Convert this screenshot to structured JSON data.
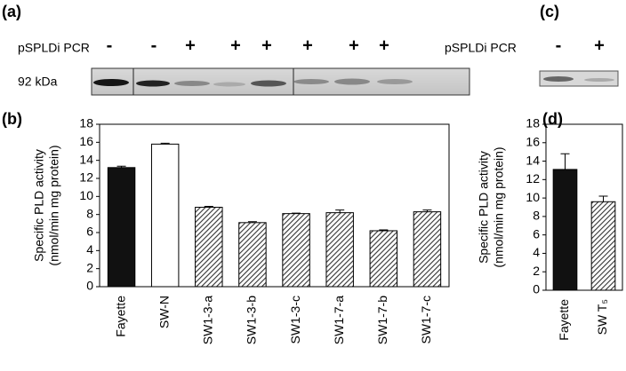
{
  "blots": [
    {
      "label": "(a)",
      "row_label": "pSPLDi PCR",
      "signs": [
        "-",
        "-",
        "+",
        "+",
        "+",
        "+",
        "+",
        "+"
      ],
      "band_label": "92 kDa"
    },
    {
      "label": "(c)",
      "row_label": "pSPLDi PCR",
      "signs": [
        "-",
        "+"
      ]
    }
  ],
  "chart_data": [
    {
      "type": "bar",
      "label": "(b)",
      "y_label": [
        "Specific PLD activity",
        "(nmol/min mg protein)"
      ],
      "categories": [
        "Fayette",
        "SW-N",
        "SW1-3-a",
        "SW1-3-b",
        "SW1-3-c",
        "SW1-7-a",
        "SW1-7-b",
        "SW1-7-c"
      ],
      "values": [
        13.2,
        15.8,
        8.8,
        7.1,
        8.1,
        8.2,
        6.2,
        8.3
      ],
      "errors": [
        0.15,
        0.1,
        0.1,
        0.1,
        0.05,
        0.3,
        0.1,
        0.2
      ],
      "colors": [
        "#111111",
        "#ffffff",
        "#888888",
        "#888888",
        "#888888",
        "#888888",
        "#888888",
        "#888888"
      ],
      "hatch": [
        false,
        false,
        true,
        true,
        true,
        true,
        true,
        true
      ],
      "ylim": [
        0,
        18
      ],
      "yticks": [
        0,
        2,
        4,
        6,
        8,
        10,
        12,
        14,
        16,
        18
      ]
    },
    {
      "type": "bar",
      "label": "(d)",
      "y_label": [
        "Specific PLD activity",
        "(nmol/min mg protein)"
      ],
      "categories": [
        "Fayette",
        "SW T₅"
      ],
      "values": [
        13.1,
        9.6
      ],
      "errors": [
        1.7,
        0.6
      ],
      "colors": [
        "#111111",
        "#888888"
      ],
      "hatch": [
        false,
        true
      ],
      "ylim": [
        0,
        18
      ],
      "yticks": [
        0,
        2,
        4,
        6,
        8,
        10,
        12,
        14,
        16,
        18
      ]
    }
  ]
}
